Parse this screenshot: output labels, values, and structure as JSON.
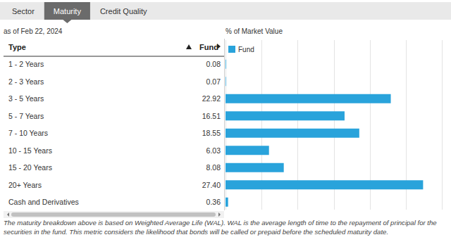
{
  "tabs": [
    {
      "label": "Sector",
      "active": false
    },
    {
      "label": "Maturity",
      "active": true
    },
    {
      "label": "Credit Quality",
      "active": false
    }
  ],
  "as_of": "as of Feb 22, 2024",
  "table_header": [
    "Type",
    "Fund"
  ],
  "footnote": "The maturity breakdown above is based on Weighted Average Life (WAL). WAL is the average length of time to the repayment of principal for the securities in the fund. This metric considers the likelihood that bonds will be called or prepaid before the scheduled maturity date.",
  "chart_data": {
    "type": "bar",
    "orientation": "horizontal",
    "title": "% of Market Value",
    "categories": [
      "1 - 2 Years",
      "2 - 3 Years",
      "3 - 5 Years",
      "5 - 7 Years",
      "7 - 10 Years",
      "10 - 15 Years",
      "15 - 20 Years",
      "20+ Years",
      "Cash and Derivatives"
    ],
    "series": [
      {
        "name": "Fund",
        "color": "#29a3db",
        "values": [
          0.08,
          0.07,
          22.92,
          16.51,
          18.55,
          6.03,
          8.08,
          27.4,
          0.36
        ],
        "value_labels": [
          "0.08",
          "0.07",
          "22.92",
          "16.51",
          "18.55",
          "6.03",
          "8.08",
          "27.40",
          "0.36"
        ]
      }
    ],
    "xlim": [
      0,
      30
    ],
    "xticks": [
      0,
      5,
      10,
      15,
      20,
      25,
      30
    ],
    "grid": true,
    "tick_labels": false,
    "data_labels": true,
    "legend": "top-left"
  }
}
